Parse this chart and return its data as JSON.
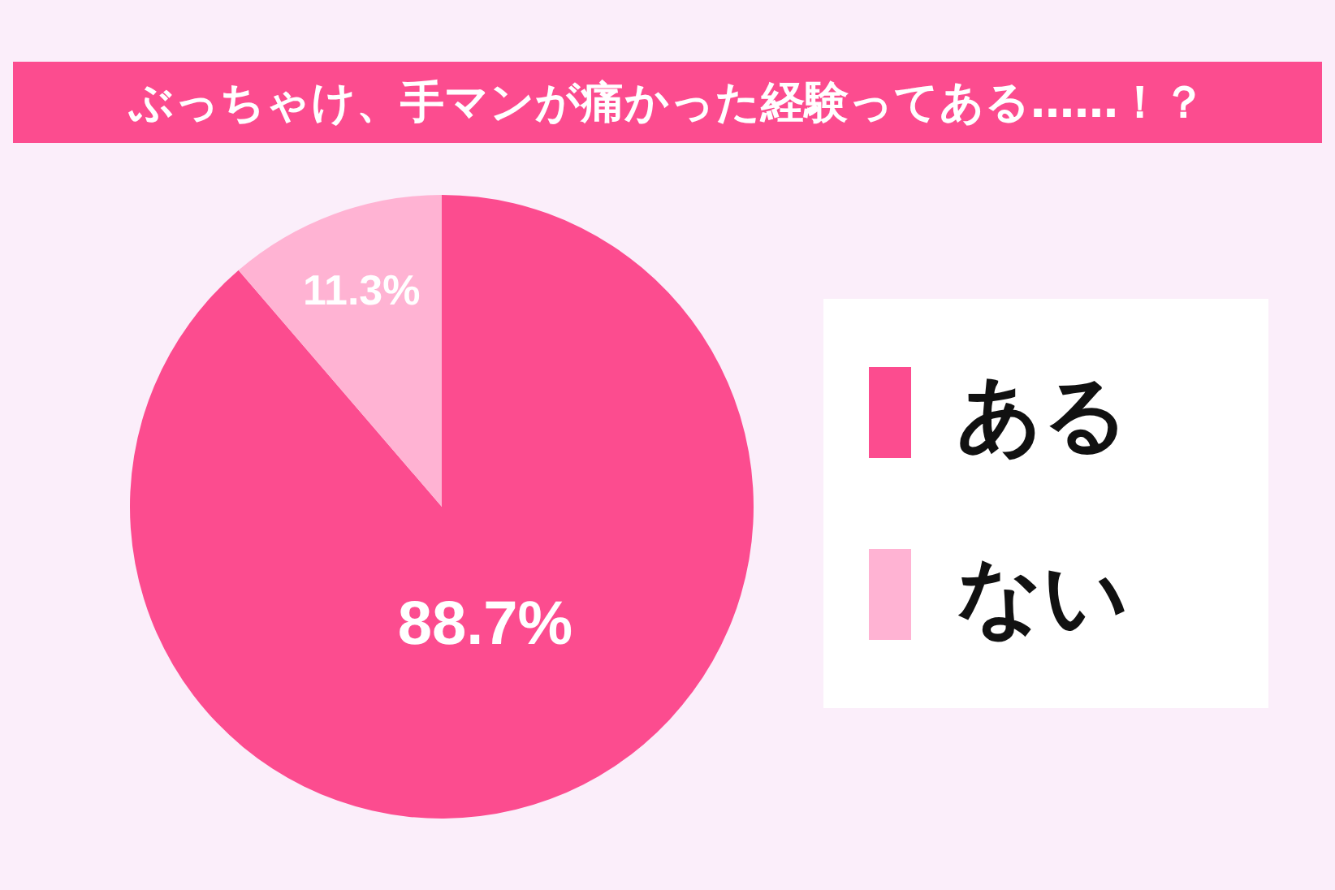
{
  "chart_data": {
    "type": "pie",
    "title": "ぶっちゃけ、手マンが痛かった経験ってある……！？",
    "categories": [
      "ある",
      "ない"
    ],
    "values": [
      88.7,
      11.3
    ],
    "colors": [
      "#fc4c8f",
      "#ffb3d3"
    ],
    "value_labels": [
      "88.7%",
      "11.3%"
    ],
    "legend": "right"
  }
}
